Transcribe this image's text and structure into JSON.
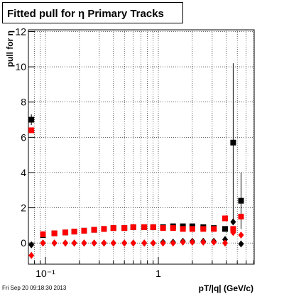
{
  "chart_data": {
    "type": "scatter",
    "title": "Fitted pull for  η  Primary Tracks",
    "x_label": "pT/|q| (GeV/c)",
    "y_label": "pull for η",
    "footer": "Fri Sep 20 09:18:30 2013",
    "x_log": true,
    "grid": true,
    "xlim": [
      0.0706,
      7.06
    ],
    "ylim": [
      -1.2,
      12.1
    ],
    "xticks": [
      {
        "value": 0.1,
        "label": "10⁻¹"
      },
      1
    ],
    "x_minor_ticks": [
      0.08,
      0.09,
      0.2,
      0.3,
      0.4,
      0.5,
      0.6,
      0.7,
      0.8,
      0.9,
      2,
      3,
      4,
      5,
      6,
      7
    ],
    "yticks": [
      0,
      2,
      4,
      6,
      8,
      10,
      12
    ],
    "x": [
      0.075,
      0.095,
      0.12,
      0.15,
      0.18,
      0.22,
      0.27,
      0.33,
      0.4,
      0.5,
      0.6,
      0.75,
      0.9,
      1.1,
      1.35,
      1.65,
      2.0,
      2.5,
      3.1,
      3.9,
      4.6,
      5.4
    ],
    "series": [
      {
        "color": "#000000",
        "marker": "square",
        "values": [
          7.0,
          0.45,
          0.55,
          0.6,
          0.65,
          0.7,
          0.75,
          0.8,
          0.85,
          0.85,
          0.9,
          0.9,
          0.9,
          0.9,
          0.95,
          0.95,
          0.95,
          0.9,
          0.85,
          0.8,
          5.7,
          2.4
        ],
        "errors": [
          0.3,
          0.05,
          0.05,
          0.05,
          0.05,
          0.05,
          0.05,
          0.05,
          0.05,
          0.05,
          0.05,
          0.05,
          0.05,
          0.05,
          0.05,
          0.05,
          0.05,
          0.05,
          0.05,
          0.1,
          4.5,
          1.6
        ]
      },
      {
        "color": "#ff0000",
        "marker": "square",
        "values": [
          6.4,
          0.5,
          0.55,
          0.6,
          0.65,
          0.7,
          0.75,
          0.8,
          0.85,
          0.85,
          0.9,
          0.9,
          0.9,
          0.85,
          0.85,
          0.8,
          0.8,
          0.8,
          0.8,
          1.4,
          0.8,
          1.5
        ]
      },
      {
        "color": "#000000",
        "marker": "diamond",
        "values": [
          -0.1,
          0.0,
          0.0,
          0.0,
          0.0,
          0.0,
          0.0,
          0.0,
          0.0,
          0.0,
          0.0,
          0.0,
          0.0,
          0.05,
          0.05,
          0.1,
          0.1,
          0.1,
          0.1,
          0.2,
          1.2,
          -0.05
        ]
      },
      {
        "color": "#ff0000",
        "marker": "diamond",
        "values": [
          -0.7,
          0.0,
          0.0,
          0.0,
          0.0,
          0.0,
          0.0,
          0.0,
          0.0,
          0.0,
          0.0,
          0.0,
          0.0,
          0.0,
          0.0,
          0.05,
          0.05,
          0.05,
          0.05,
          0.0,
          0.6,
          0.45
        ]
      }
    ]
  }
}
